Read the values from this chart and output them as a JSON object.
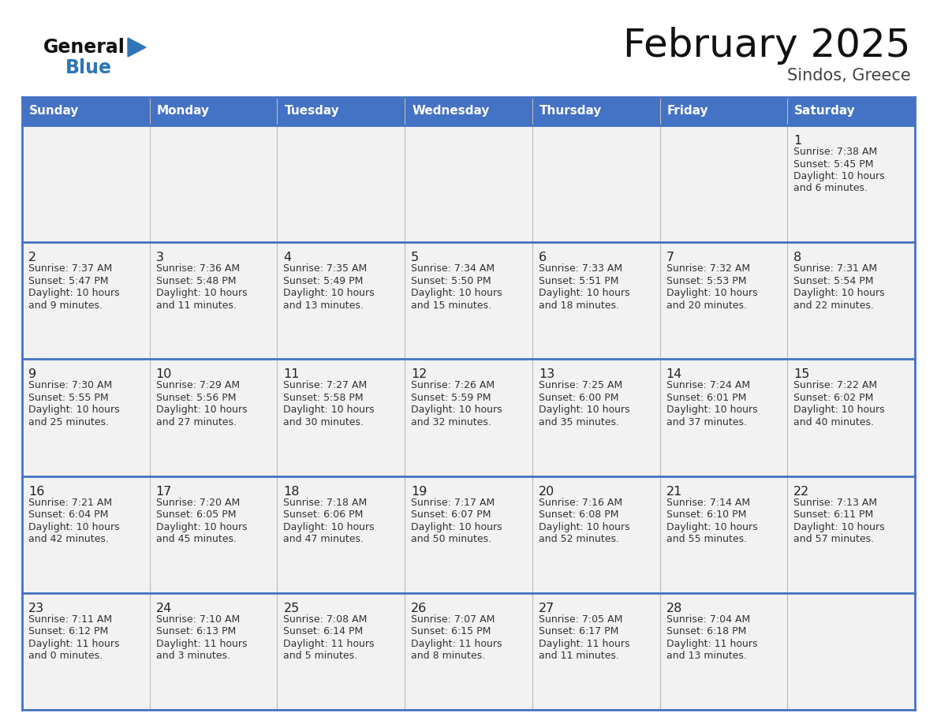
{
  "title": "February 2025",
  "subtitle": "Sindos, Greece",
  "header_bg": "#4472C4",
  "header_text_color": "#FFFFFF",
  "cell_bg_odd": "#F2F2F2",
  "cell_bg_even": "#FFFFFF",
  "row_separator_color": "#4472C4",
  "col_separator_color": "#BBBBBB",
  "outer_border_color": "#4472C4",
  "day_headers": [
    "Sunday",
    "Monday",
    "Tuesday",
    "Wednesday",
    "Thursday",
    "Friday",
    "Saturday"
  ],
  "title_color": "#111111",
  "subtitle_color": "#444444",
  "day_num_color": "#222222",
  "cell_text_color": "#333333",
  "logo_general_color": "#111111",
  "logo_blue_color": "#2E75B6",
  "calendar_data": [
    [
      null,
      null,
      null,
      null,
      null,
      null,
      {
        "day": 1,
        "sunrise": "7:38 AM",
        "sunset": "5:45 PM",
        "daylight": "10 hours and 6 minutes."
      }
    ],
    [
      {
        "day": 2,
        "sunrise": "7:37 AM",
        "sunset": "5:47 PM",
        "daylight": "10 hours and 9 minutes."
      },
      {
        "day": 3,
        "sunrise": "7:36 AM",
        "sunset": "5:48 PM",
        "daylight": "10 hours and 11 minutes."
      },
      {
        "day": 4,
        "sunrise": "7:35 AM",
        "sunset": "5:49 PM",
        "daylight": "10 hours and 13 minutes."
      },
      {
        "day": 5,
        "sunrise": "7:34 AM",
        "sunset": "5:50 PM",
        "daylight": "10 hours and 15 minutes."
      },
      {
        "day": 6,
        "sunrise": "7:33 AM",
        "sunset": "5:51 PM",
        "daylight": "10 hours and 18 minutes."
      },
      {
        "day": 7,
        "sunrise": "7:32 AM",
        "sunset": "5:53 PM",
        "daylight": "10 hours and 20 minutes."
      },
      {
        "day": 8,
        "sunrise": "7:31 AM",
        "sunset": "5:54 PM",
        "daylight": "10 hours and 22 minutes."
      }
    ],
    [
      {
        "day": 9,
        "sunrise": "7:30 AM",
        "sunset": "5:55 PM",
        "daylight": "10 hours and 25 minutes."
      },
      {
        "day": 10,
        "sunrise": "7:29 AM",
        "sunset": "5:56 PM",
        "daylight": "10 hours and 27 minutes."
      },
      {
        "day": 11,
        "sunrise": "7:27 AM",
        "sunset": "5:58 PM",
        "daylight": "10 hours and 30 minutes."
      },
      {
        "day": 12,
        "sunrise": "7:26 AM",
        "sunset": "5:59 PM",
        "daylight": "10 hours and 32 minutes."
      },
      {
        "day": 13,
        "sunrise": "7:25 AM",
        "sunset": "6:00 PM",
        "daylight": "10 hours and 35 minutes."
      },
      {
        "day": 14,
        "sunrise": "7:24 AM",
        "sunset": "6:01 PM",
        "daylight": "10 hours and 37 minutes."
      },
      {
        "day": 15,
        "sunrise": "7:22 AM",
        "sunset": "6:02 PM",
        "daylight": "10 hours and 40 minutes."
      }
    ],
    [
      {
        "day": 16,
        "sunrise": "7:21 AM",
        "sunset": "6:04 PM",
        "daylight": "10 hours and 42 minutes."
      },
      {
        "day": 17,
        "sunrise": "7:20 AM",
        "sunset": "6:05 PM",
        "daylight": "10 hours and 45 minutes."
      },
      {
        "day": 18,
        "sunrise": "7:18 AM",
        "sunset": "6:06 PM",
        "daylight": "10 hours and 47 minutes."
      },
      {
        "day": 19,
        "sunrise": "7:17 AM",
        "sunset": "6:07 PM",
        "daylight": "10 hours and 50 minutes."
      },
      {
        "day": 20,
        "sunrise": "7:16 AM",
        "sunset": "6:08 PM",
        "daylight": "10 hours and 52 minutes."
      },
      {
        "day": 21,
        "sunrise": "7:14 AM",
        "sunset": "6:10 PM",
        "daylight": "10 hours and 55 minutes."
      },
      {
        "day": 22,
        "sunrise": "7:13 AM",
        "sunset": "6:11 PM",
        "daylight": "10 hours and 57 minutes."
      }
    ],
    [
      {
        "day": 23,
        "sunrise": "7:11 AM",
        "sunset": "6:12 PM",
        "daylight": "11 hours and 0 minutes."
      },
      {
        "day": 24,
        "sunrise": "7:10 AM",
        "sunset": "6:13 PM",
        "daylight": "11 hours and 3 minutes."
      },
      {
        "day": 25,
        "sunrise": "7:08 AM",
        "sunset": "6:14 PM",
        "daylight": "11 hours and 5 minutes."
      },
      {
        "day": 26,
        "sunrise": "7:07 AM",
        "sunset": "6:15 PM",
        "daylight": "11 hours and 8 minutes."
      },
      {
        "day": 27,
        "sunrise": "7:05 AM",
        "sunset": "6:17 PM",
        "daylight": "11 hours and 11 minutes."
      },
      {
        "day": 28,
        "sunrise": "7:04 AM",
        "sunset": "6:18 PM",
        "daylight": "11 hours and 13 minutes."
      },
      null
    ]
  ]
}
